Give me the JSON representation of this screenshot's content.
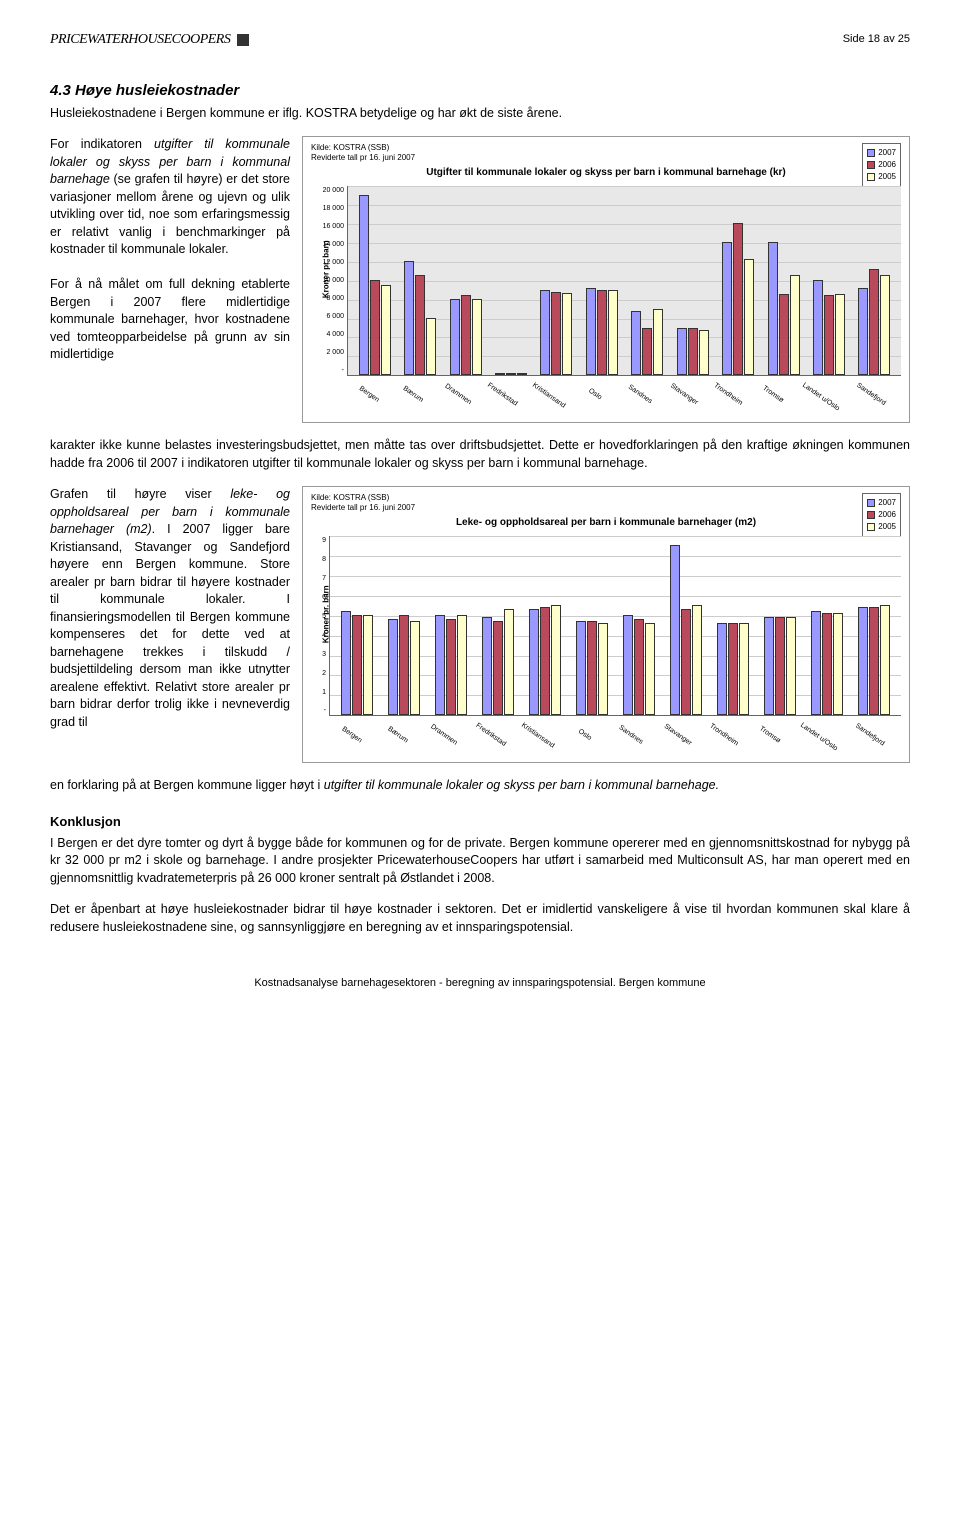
{
  "header": {
    "logo": "PRICEWATERHOUSECOOPERS",
    "page_num": "Side 18 av 25"
  },
  "section_title": "4.3  Høye husleiekostnader",
  "intro": "Husleiekostnadene i Bergen kommune er iflg. KOSTRA betydelige og har økt de siste årene.",
  "para1": "For indikatoren utgifter til kommunale lokaler og skyss per barn i kommunal barnehage (se grafen til høyre) er det store variasjoner mellom årene og ujevn og ulik utvikling over tid, noe som erfaringsmessig er relativt vanlig i benchmarkinger på kostnader til kommunale lokaler.",
  "para2a": "For å nå målet om full dekning etablerte Bergen i 2007 flere midlertidige kommunale barnehager, hvor kostnadene ved tomteopparbeidelse på grunn av sin midlertidige",
  "para2b": "karakter ikke kunne belastes investeringsbudsjettet, men måtte tas over driftsbudsjettet. Dette er hovedforklaringen på den kraftige økningen kommunen hadde fra 2006 til 2007 i indikatoren utgifter til kommunale lokaler og skyss per barn i kommunal barnehage.",
  "para3a": "Grafen til høyre viser leke- og oppholdsareal per barn i kommunale barnehager (m2). I 2007 ligger bare Kristiansand, Stavanger og Sandefjord høyere enn Bergen kommune. Store arealer pr barn bidrar til høyere kostnader til kommunale lokaler. I finansieringsmodellen til Bergen kommune kompenseres det for dette ved at barnehagene trekkes i tilskudd / budsjettildeling dersom man ikke utnytter arealene effektivt. Relativt store arealer pr barn bidrar derfor trolig ikke i nevneverdig grad til",
  "para3b": "en forklaring på at Bergen kommune ligger høyt i utgifter til kommunale lokaler og skyss per barn i kommunal barnehage.",
  "konklusjon_title": "Konklusjon",
  "konklusjon1": "I Bergen er det dyre tomter og dyrt å bygge både for kommunen og for de private. Bergen kommune opererer med en gjennomsnittskostnad for nybygg på kr 32 000 pr m2 i skole og barnehage. I andre prosjekter PricewaterhouseCoopers har utført i samarbeid med Multiconsult AS, har man operert med en gjennomsnittlig kvadratemeterpris på 26 000 kroner sentralt på Østlandet i 2008.",
  "konklusjon2": "Det er åpenbart at høye husleiekostnader bidrar til høye kostnader i sektoren. Det er imidlertid vanskeligere å vise til hvordan kommunen skal klare å redusere husleiekostnadene sine, og sannsynliggjøre en beregning av et innsparingspotensial.",
  "footer": "Kostnadsanalyse barnehagesektoren - beregning av innsparingspotensial.    Bergen kommune",
  "chart1": {
    "source1": "Kilde: KOSTRA (SSB)",
    "source2": "Reviderte tall pr 16. juni 2007",
    "title": "Utgifter til kommunale lokaler og skyss per barn i kommunal barnehage (kr)",
    "ylabel": "Kroner pr. barn",
    "ymax": 20000,
    "yticks": [
      "20 000",
      "18 000",
      "16 000",
      "14 000",
      "12 000",
      "10 000",
      "8 000",
      "6 000",
      "4 000",
      "2 000",
      "-"
    ],
    "legend": [
      {
        "label": "2007",
        "color": "#9999ff"
      },
      {
        "label": "2006",
        "color": "#b84a5c"
      },
      {
        "label": "2005",
        "color": "#ffffcc"
      }
    ],
    "categories": [
      "Bergen",
      "Bærum",
      "Drammen",
      "Fredrikstad",
      "Kristiansand",
      "Oslo",
      "Sandnes",
      "Stavanger",
      "Trondheim",
      "Tromsø",
      "Landet u/Oslo",
      "Sandefjord"
    ],
    "series": {
      "2007": [
        19000,
        12000,
        8000,
        200,
        9000,
        9200,
        6800,
        5000,
        14000,
        14000,
        10000,
        9200
      ],
      "2006": [
        10000,
        10600,
        8500,
        100,
        8800,
        9000,
        5000,
        5000,
        16000,
        8600,
        8500,
        11200
      ],
      "2005": [
        9500,
        6000,
        8000,
        100,
        8700,
        9000,
        7000,
        4800,
        12200,
        10600,
        8600,
        10600
      ]
    }
  },
  "chart2": {
    "source1": "Kilde: KOSTRA (SSB)",
    "source2": "Reviderte tall pr 16. juni 2007",
    "title": "Leke- og oppholdsareal per barn i kommunale barnehager (m2)",
    "ylabel": "Kroner pr. barn",
    "ymax": 9,
    "yticks": [
      "9",
      "8",
      "7",
      "6",
      "5",
      "4",
      "3",
      "2",
      "1",
      "-"
    ],
    "legend": [
      {
        "label": "2007",
        "color": "#9999ff"
      },
      {
        "label": "2006",
        "color": "#b84a5c"
      },
      {
        "label": "2005",
        "color": "#ffffcc"
      }
    ],
    "categories": [
      "Bergen",
      "Bærum",
      "Drammen",
      "Fredrikstad",
      "Kristiansand",
      "Oslo",
      "Sandnes",
      "Stavanger",
      "Trondheim",
      "Tromsø",
      "Landet u/Oslo",
      "Sandefjord"
    ],
    "series": {
      "2007": [
        5.2,
        4.8,
        5.0,
        4.9,
        5.3,
        4.7,
        5.0,
        8.5,
        4.6,
        4.9,
        5.2,
        5.4
      ],
      "2006": [
        5.0,
        5.0,
        4.8,
        4.7,
        5.4,
        4.7,
        4.8,
        5.3,
        4.6,
        4.9,
        5.1,
        5.4
      ],
      "2005": [
        5.0,
        4.7,
        5.0,
        5.3,
        5.5,
        4.6,
        4.6,
        5.5,
        4.6,
        4.9,
        5.1,
        5.5
      ]
    }
  }
}
